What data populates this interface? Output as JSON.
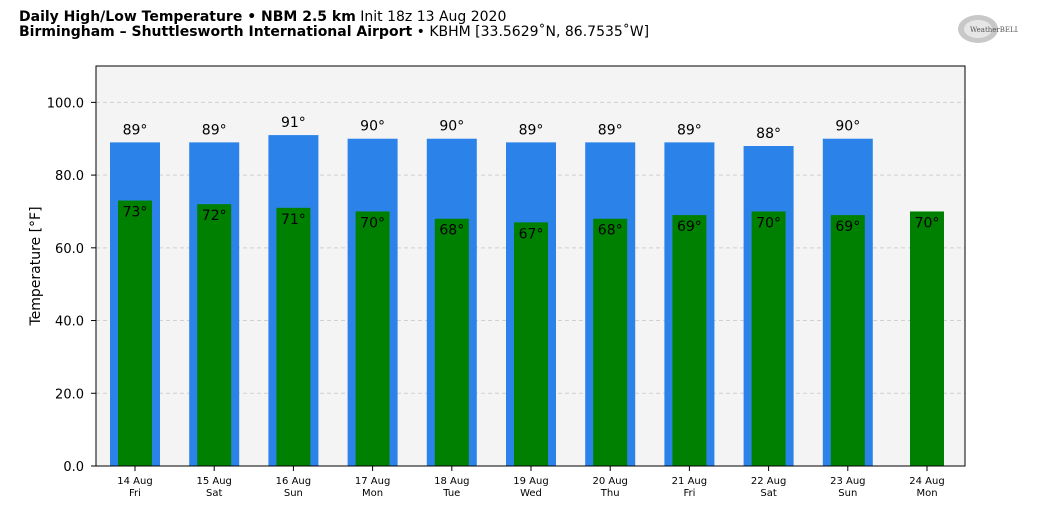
{
  "header": {
    "title_bold": "Daily High/Low Temperature • NBM 2.5 km",
    "title_rest": "Init 18z 13 Aug 2020",
    "location_bold": "Birmingham – Shuttlesworth International Airport",
    "location_rest": "• KBHM [33.5629˚N, 86.7535˚W]"
  },
  "logo": {
    "text": "WeatherBELL",
    "icon": "weatherbell-logo"
  },
  "colors": {
    "high": "#2b83ea",
    "low": "#008000",
    "plot_bg": "#f4f4f4",
    "grid": "#d0d0d0"
  },
  "chart_data": {
    "type": "bar",
    "ylabel": "Temperature [°F]",
    "ylim": [
      0,
      110
    ],
    "yticks": [
      "0.0",
      "20.0",
      "40.0",
      "60.0",
      "80.0",
      "100.0"
    ],
    "grid": true,
    "categories": [
      {
        "date": "14 Aug",
        "day": "Fri"
      },
      {
        "date": "15 Aug",
        "day": "Sat"
      },
      {
        "date": "16 Aug",
        "day": "Sun"
      },
      {
        "date": "17 Aug",
        "day": "Mon"
      },
      {
        "date": "18 Aug",
        "day": "Tue"
      },
      {
        "date": "19 Aug",
        "day": "Wed"
      },
      {
        "date": "20 Aug",
        "day": "Thu"
      },
      {
        "date": "21 Aug",
        "day": "Fri"
      },
      {
        "date": "22 Aug",
        "day": "Sat"
      },
      {
        "date": "23 Aug",
        "day": "Sun"
      },
      {
        "date": "24 Aug",
        "day": "Mon"
      }
    ],
    "series": [
      {
        "key": "high",
        "values": [
          89,
          89,
          91,
          90,
          90,
          89,
          89,
          89,
          88,
          90,
          null
        ],
        "labels": [
          "89°",
          "89°",
          "91°",
          "90°",
          "90°",
          "89°",
          "89°",
          "89°",
          "88°",
          "90°",
          ""
        ]
      },
      {
        "key": "low",
        "values": [
          73,
          72,
          71,
          70,
          68,
          67,
          68,
          69,
          70,
          69,
          70
        ],
        "labels": [
          "73°",
          "72°",
          "71°",
          "70°",
          "68°",
          "67°",
          "68°",
          "69°",
          "70°",
          "69°",
          "70°"
        ]
      }
    ]
  }
}
